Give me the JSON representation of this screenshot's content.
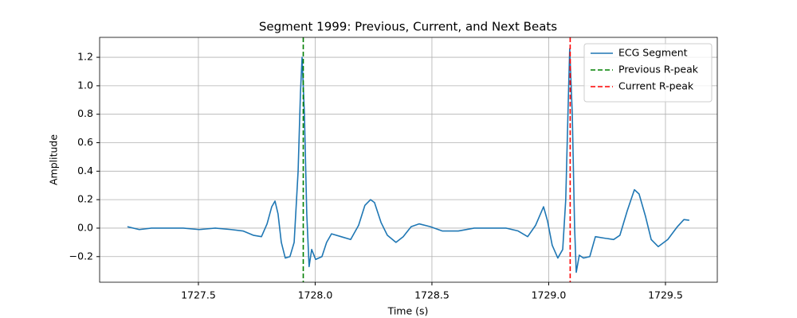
{
  "chart_data": {
    "type": "line",
    "title": "Segment 1999: Previous, Current, and Next Beats",
    "xlabel": "Time (s)",
    "ylabel": "Amplitude",
    "x": [
      1727.196,
      1727.247,
      1727.299,
      1727.367,
      1727.435,
      1727.503,
      1727.572,
      1727.64,
      1727.691,
      1727.735,
      1727.77,
      1727.794,
      1727.814,
      1727.828,
      1727.841,
      1727.855,
      1727.872,
      1727.892,
      1727.91,
      1727.927,
      1727.937,
      1727.944,
      1727.954,
      1727.964,
      1727.974,
      1727.985,
      1728.002,
      1728.029,
      1728.049,
      1728.07,
      1728.111,
      1728.152,
      1728.186,
      1728.213,
      1728.237,
      1728.254,
      1728.282,
      1728.309,
      1728.346,
      1728.377,
      1728.411,
      1728.445,
      1728.493,
      1728.544,
      1728.613,
      1728.681,
      1728.749,
      1728.817,
      1728.869,
      1728.91,
      1728.944,
      1728.978,
      1728.995,
      1729.015,
      1729.039,
      1729.06,
      1729.073,
      1729.084,
      1729.09,
      1729.101,
      1729.111,
      1729.118,
      1729.131,
      1729.149,
      1729.176,
      1729.2,
      1729.237,
      1729.278,
      1729.305,
      1729.336,
      1729.367,
      1729.387,
      1729.415,
      1729.439,
      1729.469,
      1729.51,
      1729.551,
      1729.579,
      1729.602
    ],
    "series": [
      {
        "name": "ECG Segment",
        "color": "#1f77b4",
        "values": [
          0.01,
          -0.01,
          0.0,
          0.0,
          0.0,
          -0.01,
          0.0,
          -0.01,
          -0.02,
          -0.05,
          -0.06,
          0.03,
          0.15,
          0.19,
          0.1,
          -0.1,
          -0.21,
          -0.2,
          -0.1,
          0.4,
          0.95,
          1.2,
          0.8,
          0.1,
          -0.27,
          -0.15,
          -0.22,
          -0.2,
          -0.1,
          -0.04,
          -0.06,
          -0.08,
          0.02,
          0.16,
          0.2,
          0.18,
          0.04,
          -0.05,
          -0.1,
          -0.06,
          0.01,
          0.03,
          0.01,
          -0.02,
          -0.02,
          0.0,
          0.0,
          0.0,
          -0.02,
          -0.06,
          0.02,
          0.15,
          0.05,
          -0.12,
          -0.21,
          -0.15,
          0.2,
          0.9,
          1.26,
          0.8,
          0.0,
          -0.31,
          -0.19,
          -0.21,
          -0.2,
          -0.06,
          -0.07,
          -0.08,
          -0.05,
          0.12,
          0.27,
          0.24,
          0.08,
          -0.08,
          -0.13,
          -0.08,
          0.01,
          0.06,
          0.055
        ]
      }
    ],
    "vlines": [
      {
        "name": "Previous R-peak",
        "color": "green",
        "x": 1727.949,
        "style": "dashed"
      },
      {
        "name": "Current R-peak",
        "color": "red",
        "x": 1729.092,
        "style": "dashed"
      }
    ],
    "xlim": [
      1727.077,
      1729.722
    ],
    "ylim": [
      -0.38,
      1.34
    ],
    "xticks": [
      {
        "value": 1727.5,
        "label": "1727.5"
      },
      {
        "value": 1728.0,
        "label": "1728.0"
      },
      {
        "value": 1728.5,
        "label": "1728.5"
      },
      {
        "value": 1729.0,
        "label": "1729.0"
      },
      {
        "value": 1729.5,
        "label": "1729.5"
      }
    ],
    "yticks": [
      {
        "value": -0.2,
        "label": "−0.2"
      },
      {
        "value": 0.0,
        "label": "0.0"
      },
      {
        "value": 0.2,
        "label": "0.2"
      },
      {
        "value": 0.4,
        "label": "0.4"
      },
      {
        "value": 0.6,
        "label": "0.6"
      },
      {
        "value": 0.8,
        "label": "0.8"
      },
      {
        "value": 1.0,
        "label": "1.0"
      },
      {
        "value": 1.2,
        "label": "1.2"
      }
    ],
    "grid": true,
    "legend": "upper right"
  }
}
